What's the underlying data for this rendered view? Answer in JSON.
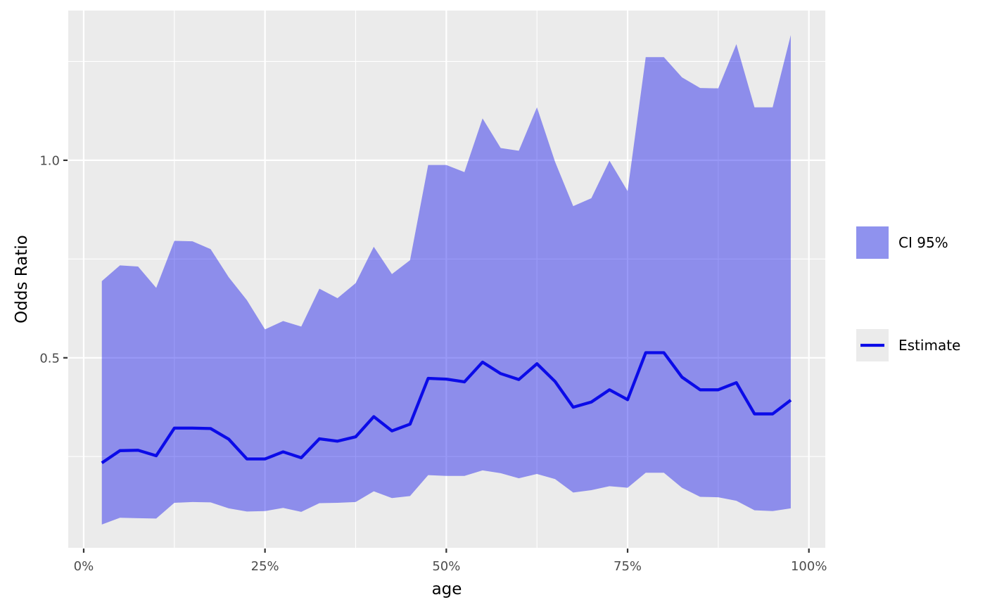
{
  "figure": {
    "background": "#ffffff",
    "panel_background": "#ebebeb",
    "grid_color": "#ffffff",
    "tick_mark_color": "#333333",
    "tick_label_color": "#4d4d4d",
    "axis_title_color": "#000000"
  },
  "legend": {
    "position": "right",
    "entries": [
      {
        "label": "CI 95%",
        "type": "fill",
        "swatch_color": "#8f92ee"
      },
      {
        "label": "Estimate",
        "type": "line",
        "key_background": "#ebebeb",
        "line_color": "#0b0be8"
      }
    ]
  },
  "chart_data": {
    "type": "area",
    "title": "",
    "xlabel": "age",
    "ylabel": "Odds Ratio",
    "x_unit": "percent",
    "grid": true,
    "legend_position": "right",
    "xlim": [
      -2.13,
      102.26
    ],
    "ylim": [
      0.019,
      1.379
    ],
    "x_ticks": [
      0,
      25,
      50,
      75,
      100
    ],
    "x_tick_labels": [
      "0%",
      "25%",
      "50%",
      "75%",
      "100%"
    ],
    "x_minor_ticks": [
      12.5,
      37.5,
      62.5,
      87.5
    ],
    "y_ticks": [
      0.5,
      1.0
    ],
    "y_tick_labels": [
      "0.5",
      "1.0"
    ],
    "y_minor_ticks": [
      0.25,
      0.75,
      1.25
    ],
    "ribbon_fill": "rgba(0,0,235,0.40)",
    "line_color": "#0b0be8",
    "line_width": 4.3,
    "x": [
      2.5,
      5,
      7.5,
      10,
      12.5,
      15,
      17.5,
      20,
      22.5,
      25,
      27.5,
      30,
      32.5,
      35,
      37.5,
      40,
      42.5,
      45,
      47.5,
      50,
      52.5,
      55,
      57.5,
      60,
      62.5,
      65,
      67.5,
      70,
      72.5,
      75,
      77.5,
      80,
      82.5,
      85,
      87.5,
      90,
      92.5,
      95,
      97.5
    ],
    "series": [
      {
        "name": "Estimate",
        "role": "line",
        "values": [
          0.234,
          0.265,
          0.266,
          0.252,
          0.322,
          0.322,
          0.321,
          0.294,
          0.244,
          0.244,
          0.262,
          0.247,
          0.295,
          0.289,
          0.3,
          0.351,
          0.315,
          0.332,
          0.448,
          0.446,
          0.439,
          0.489,
          0.46,
          0.445,
          0.485,
          0.44,
          0.375,
          0.388,
          0.419,
          0.394,
          0.513,
          0.513,
          0.451,
          0.419,
          0.419,
          0.437,
          0.358,
          0.358,
          0.393
        ]
      },
      {
        "name": "CI 95% upper",
        "role": "ribbon-upper",
        "values": [
          0.694,
          0.734,
          0.731,
          0.677,
          0.796,
          0.795,
          0.775,
          0.704,
          0.646,
          0.572,
          0.593,
          0.579,
          0.675,
          0.651,
          0.689,
          0.781,
          0.712,
          0.747,
          0.988,
          0.988,
          0.97,
          1.106,
          1.031,
          1.024,
          1.134,
          0.996,
          0.884,
          0.904,
          0.999,
          0.922,
          1.261,
          1.261,
          1.21,
          1.183,
          1.182,
          1.294,
          1.134,
          1.134,
          1.317
        ]
      },
      {
        "name": "CI 95% lower",
        "role": "ribbon-lower",
        "values": [
          0.078,
          0.095,
          0.094,
          0.093,
          0.133,
          0.135,
          0.134,
          0.119,
          0.111,
          0.112,
          0.12,
          0.11,
          0.132,
          0.133,
          0.135,
          0.162,
          0.145,
          0.15,
          0.203,
          0.201,
          0.201,
          0.215,
          0.208,
          0.195,
          0.206,
          0.193,
          0.159,
          0.165,
          0.175,
          0.171,
          0.209,
          0.209,
          0.171,
          0.148,
          0.147,
          0.138,
          0.114,
          0.112,
          0.119
        ]
      }
    ]
  }
}
